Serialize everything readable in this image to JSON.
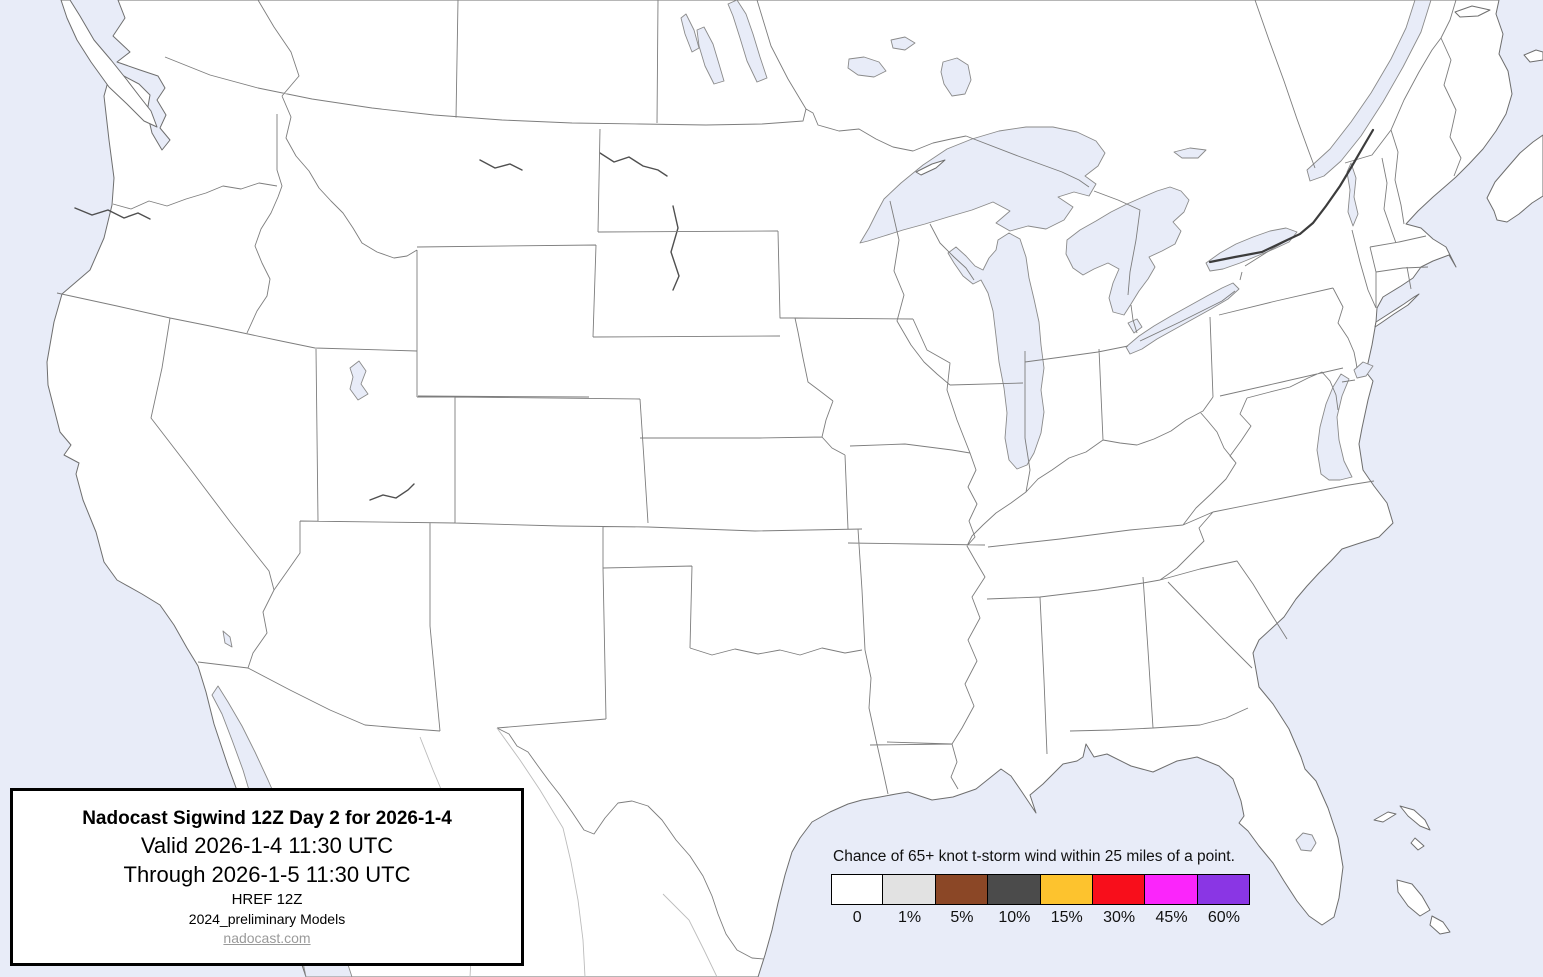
{
  "map": {
    "region_label": "Continental United States basemap with state borders and Great Lakes",
    "ocean_color": "#e8ecf8",
    "land_color": "#ffffff"
  },
  "title_box": {
    "line1": "Nadocast Sigwind 12Z Day 2 for 2026-1-4",
    "line2": "Valid 2026-1-4 11:30 UTC",
    "line3": "Through 2026-1-5 11:30 UTC",
    "line4": "HREF 12Z",
    "line5": "2024_preliminary Models",
    "link": "nadocast.com"
  },
  "legend": {
    "title": "Chance of 65+ knot t-storm wind within 25 miles of a point.",
    "bins": [
      {
        "label": "0",
        "color": "#ffffff"
      },
      {
        "label": "1%",
        "color": "#e2e2e2"
      },
      {
        "label": "5%",
        "color": "#8b4726"
      },
      {
        "label": "10%",
        "color": "#4b4b4b"
      },
      {
        "label": "15%",
        "color": "#fdc32e"
      },
      {
        "label": "30%",
        "color": "#f80e1b"
      },
      {
        "label": "45%",
        "color": "#fb25fb"
      },
      {
        "label": "60%",
        "color": "#8a36e4"
      }
    ]
  }
}
